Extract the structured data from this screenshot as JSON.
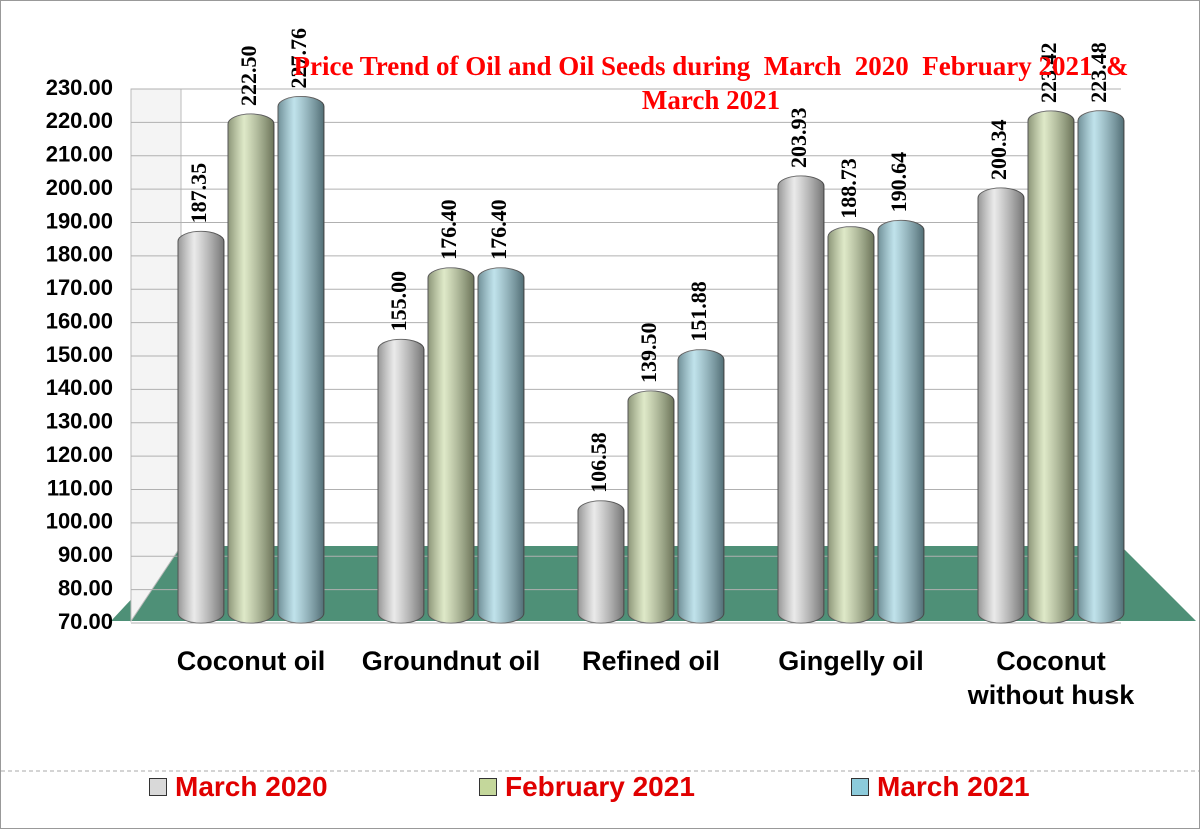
{
  "chart_data": {
    "type": "bar",
    "title": "Price Trend of Oil and Oil Seeds during  March  2020  February 2021  &  March 2021",
    "categories": [
      "Coconut oil",
      "Groundnut oil",
      "Refined oil",
      "Gingelly oil",
      "Coconut without husk"
    ],
    "series": [
      {
        "name": "March 2020",
        "color": "#d9d9d9",
        "values": [
          187.35,
          155.0,
          106.58,
          203.93,
          200.34
        ],
        "value_labels": [
          "187.35",
          "155.00",
          "106.58",
          "203.93",
          "200.34"
        ]
      },
      {
        "name": "February 2021",
        "color": "#c4d79b",
        "values": [
          222.5,
          176.4,
          139.5,
          188.73,
          223.42
        ],
        "value_labels": [
          "222.50",
          "176.40",
          "139.50",
          "188.73",
          "223.42"
        ]
      },
      {
        "name": "March 2021",
        "color": "#8ccbdb",
        "values": [
          227.76,
          176.4,
          151.88,
          190.64,
          223.48
        ],
        "value_labels": [
          "227.76",
          "176.40",
          "151.88",
          "190.64",
          "223.48"
        ]
      }
    ],
    "ylim": [
      70,
      230
    ],
    "yticks": [
      {
        "value": 70,
        "label": "70.00"
      },
      {
        "value": 80,
        "label": "80.00"
      },
      {
        "value": 90,
        "label": "90.00"
      },
      {
        "value": 100,
        "label": "100.00"
      },
      {
        "value": 110,
        "label": "110.00"
      },
      {
        "value": 120,
        "label": "120.00"
      },
      {
        "value": 130,
        "label": "130.00"
      },
      {
        "value": 140,
        "label": "140.00"
      },
      {
        "value": 150,
        "label": "150.00"
      },
      {
        "value": 160,
        "label": "160.00"
      },
      {
        "value": 170,
        "label": "170.00"
      },
      {
        "value": 180,
        "label": "180.00"
      },
      {
        "value": 190,
        "label": "190.00"
      },
      {
        "value": 200,
        "label": "200.00"
      },
      {
        "value": 210,
        "label": "210.00"
      },
      {
        "value": 220,
        "label": "220.00"
      },
      {
        "value": 230,
        "label": "230.00"
      }
    ],
    "grid": true,
    "legend": "bottom"
  }
}
